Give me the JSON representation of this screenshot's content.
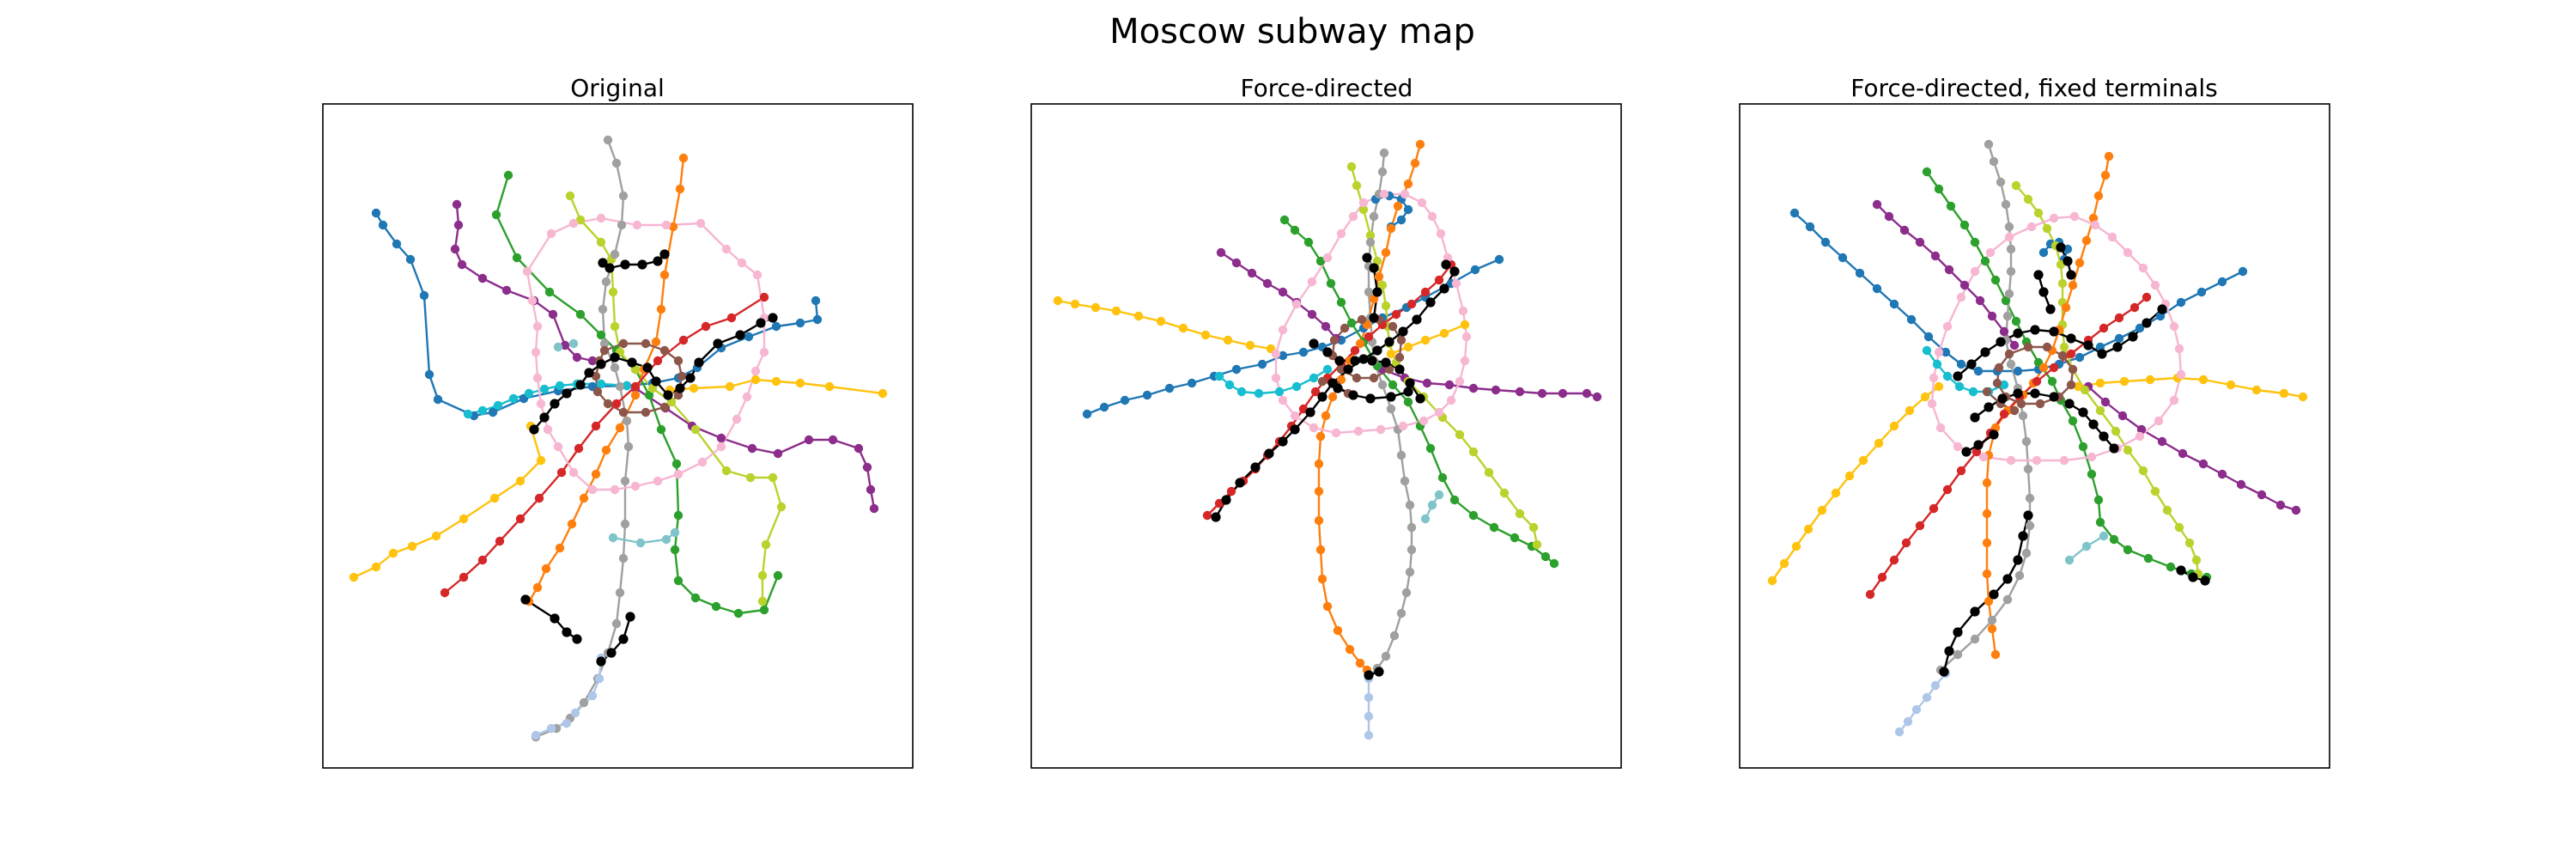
{
  "figure": {
    "title": "Moscow subway map",
    "panels": [
      {
        "title": "Original"
      },
      {
        "title": "Force-directed"
      },
      {
        "title": "Force-directed, fixed terminals"
      }
    ]
  },
  "colors": {
    "blue": "#1f77b4",
    "lightblue": "#17becf",
    "red": "#d62728",
    "orange": "#ff7f0e",
    "yellow": "#ffc20e",
    "green": "#2ca02c",
    "purple": "#8c2d8c",
    "lime": "#bcd22c",
    "gray": "#a0a0a0",
    "pink": "#f7b6d2",
    "brown": "#8c564b",
    "teal": "#7fc4c9",
    "periwinkle": "#aec7e8",
    "black": "#000000"
  }
}
